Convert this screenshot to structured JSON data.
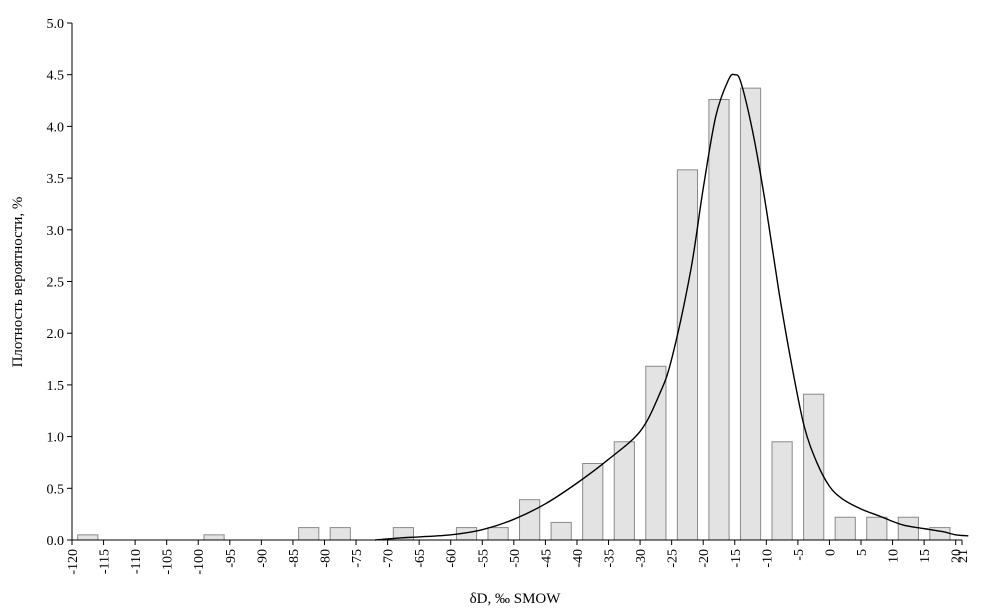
{
  "chart_data": {
    "type": "bar",
    "xlabel": "δD, ‰ SMOW",
    "ylabel": "Плотность вероятности, %",
    "xlim": [
      -120,
      21
    ],
    "ylim": [
      0,
      5
    ],
    "x_ticks": [
      "-120",
      "-115",
      "-110",
      "-105",
      "-100",
      "-95",
      "-90",
      "-85",
      "-80",
      "-75",
      "-70",
      "-65",
      "-60",
      "-55",
      "-50",
      "-45",
      "-40",
      "-35",
      "-30",
      "-25",
      "-20",
      "-15",
      "-10",
      "-5",
      "0",
      "5",
      "10",
      "15",
      "20",
      "21"
    ],
    "y_ticks": [
      "0.0",
      "0.5",
      "1.0",
      "1.5",
      "2.0",
      "2.5",
      "3.0",
      "3.5",
      "4.0",
      "4.5",
      "5.0"
    ],
    "bars": {
      "x": [
        -117.5,
        -112.5,
        -107.5,
        -102.5,
        -97.5,
        -92.5,
        -87.5,
        -82.5,
        -77.5,
        -72.5,
        -67.5,
        -62.5,
        -57.5,
        -52.5,
        -47.5,
        -42.5,
        -37.5,
        -32.5,
        -27.5,
        -22.5,
        -17.5,
        -12.5,
        -7.5,
        -2.5,
        2.5,
        7.5,
        12.5,
        17.5
      ],
      "values": [
        0.05,
        0,
        0,
        0,
        0.05,
        0,
        0,
        0.12,
        0.12,
        0,
        0.12,
        0,
        0.12,
        0.12,
        0.39,
        0.17,
        0.74,
        0.95,
        1.68,
        3.58,
        4.26,
        4.37,
        0.95,
        1.41,
        0.22,
        0.22,
        0.22,
        0.12
      ]
    },
    "curve": {
      "x": [
        -72,
        -68,
        -65,
        -60,
        -55,
        -50,
        -45,
        -40,
        -35,
        -30,
        -27,
        -25,
        -22,
        -20,
        -18,
        -16,
        -15,
        -14,
        -12,
        -10,
        -8,
        -6,
        -4,
        -2,
        0,
        2,
        5,
        8,
        10,
        12,
        15,
        18,
        20,
        22
      ],
      "y": [
        0,
        0.02,
        0.03,
        0.05,
        0.1,
        0.2,
        0.35,
        0.55,
        0.78,
        1.05,
        1.4,
        1.75,
        2.6,
        3.4,
        4.1,
        4.45,
        4.5,
        4.42,
        3.9,
        3.2,
        2.4,
        1.7,
        1.1,
        0.75,
        0.52,
        0.4,
        0.3,
        0.23,
        0.18,
        0.14,
        0.11,
        0.08,
        0.05,
        0.04
      ]
    }
  }
}
